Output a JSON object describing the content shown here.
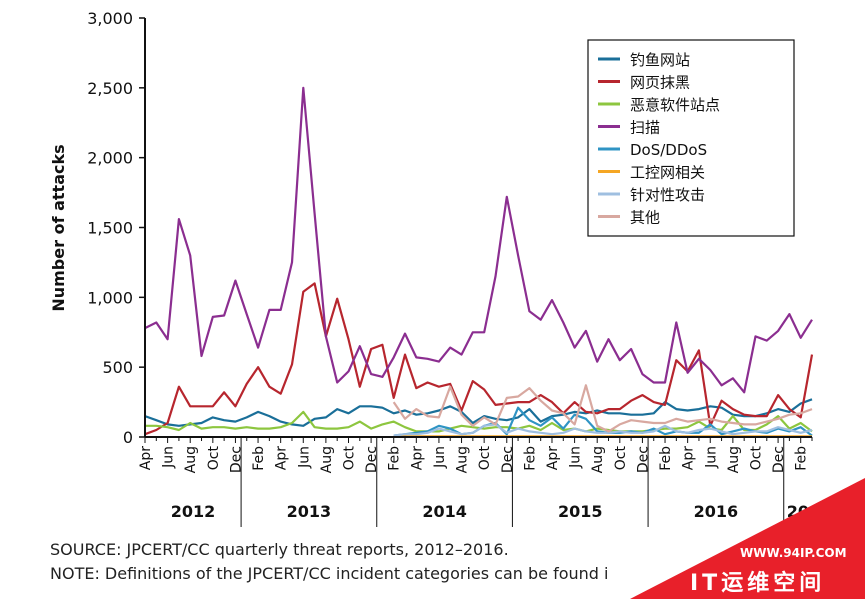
{
  "chart_data": {
    "type": "line",
    "title": "",
    "xlabel": "",
    "ylabel": "Number of attacks",
    "ylim": [
      0,
      3000
    ],
    "yticks": [
      0,
      500,
      1000,
      1500,
      2000,
      2500,
      3000
    ],
    "ytick_labels": [
      "0",
      "500",
      "1,000",
      "1,500",
      "2,000",
      "2,500",
      "3,000"
    ],
    "xtick_labels": [
      "Apr",
      "Jun",
      "Aug",
      "Oct",
      "Dec",
      "Feb",
      "Apr",
      "Jun",
      "Aug",
      "Oct",
      "Dec",
      "Feb",
      "Apr",
      "Jun",
      "Aug",
      "Oct",
      "Dec",
      "Feb",
      "Apr",
      "Jun",
      "Aug",
      "Oct",
      "Dec",
      "Feb",
      "Apr",
      "Jun",
      "Aug",
      "Oct",
      "Dec",
      "Feb"
    ],
    "year_labels": [
      "2012",
      "2013",
      "2014",
      "2015",
      "2016",
      "20"
    ],
    "grid": false,
    "legend_position": "top-right",
    "x_months": [
      "2012-04",
      "2012-05",
      "2012-06",
      "2012-07",
      "2012-08",
      "2012-09",
      "2012-10",
      "2012-11",
      "2012-12",
      "2013-01",
      "2013-02",
      "2013-03",
      "2013-04",
      "2013-05",
      "2013-06",
      "2013-07",
      "2013-08",
      "2013-09",
      "2013-10",
      "2013-11",
      "2013-12",
      "2014-01",
      "2014-02",
      "2014-03",
      "2014-04",
      "2014-05",
      "2014-06",
      "2014-07",
      "2014-08",
      "2014-09",
      "2014-10",
      "2014-11",
      "2014-12",
      "2015-01",
      "2015-02",
      "2015-03",
      "2015-04",
      "2015-05",
      "2015-06",
      "2015-07",
      "2015-08",
      "2015-09",
      "2015-10",
      "2015-11",
      "2015-12",
      "2016-01",
      "2016-02",
      "2016-03",
      "2016-04",
      "2016-05",
      "2016-06",
      "2016-07",
      "2016-08",
      "2016-09",
      "2016-10",
      "2016-11",
      "2016-12",
      "2017-01",
      "2017-02",
      "2017-03"
    ],
    "series": [
      {
        "name": "钓鱼网站",
        "color": "#1a6f99",
        "values": [
          150,
          120,
          90,
          80,
          90,
          100,
          140,
          120,
          110,
          140,
          180,
          150,
          110,
          90,
          80,
          130,
          140,
          200,
          170,
          220,
          220,
          210,
          170,
          190,
          160,
          170,
          190,
          220,
          180,
          100,
          150,
          130,
          120,
          140,
          200,
          110,
          150,
          160,
          180,
          170,
          190,
          170,
          170,
          160,
          160,
          170,
          250,
          200,
          190,
          200,
          220,
          210,
          160,
          150,
          150,
          170,
          200,
          180,
          240,
          270
        ]
      },
      {
        "name": "网页抹黑",
        "color": "#b7262e",
        "values": [
          20,
          50,
          100,
          360,
          220,
          220,
          220,
          320,
          220,
          380,
          500,
          360,
          310,
          520,
          1040,
          1100,
          720,
          990,
          700,
          360,
          630,
          660,
          280,
          590,
          350,
          390,
          360,
          380,
          190,
          400,
          340,
          230,
          240,
          250,
          250,
          300,
          250,
          170,
          250,
          180,
          170,
          200,
          200,
          260,
          300,
          250,
          230,
          550,
          470,
          620,
          80,
          260,
          200,
          160,
          150,
          150,
          300,
          200,
          140,
          590
        ]
      },
      {
        "name": "恶意软件站点",
        "color": "#8dc63f",
        "values": [
          80,
          80,
          70,
          50,
          100,
          60,
          70,
          70,
          60,
          70,
          60,
          60,
          70,
          100,
          180,
          70,
          60,
          60,
          70,
          110,
          60,
          90,
          110,
          70,
          40,
          40,
          40,
          60,
          80,
          70,
          60,
          70,
          70,
          60,
          80,
          50,
          100,
          50,
          60,
          40,
          60,
          50,
          40,
          40,
          40,
          50,
          60,
          60,
          70,
          110,
          60,
          50,
          150,
          50,
          50,
          90,
          150,
          60,
          100,
          40
        ]
      },
      {
        "name": "扫描",
        "color": "#8b2e90",
        "values": [
          780,
          820,
          700,
          1560,
          1300,
          580,
          860,
          870,
          1120,
          880,
          640,
          910,
          910,
          1250,
          2500,
          1600,
          720,
          390,
          470,
          650,
          450,
          430,
          570,
          740,
          570,
          560,
          540,
          640,
          590,
          750,
          750,
          1150,
          1720,
          1300,
          900,
          840,
          980,
          820,
          640,
          760,
          540,
          700,
          550,
          630,
          450,
          390,
          390,
          820,
          460,
          560,
          480,
          370,
          420,
          320,
          720,
          690,
          760,
          880,
          710,
          840
        ]
      },
      {
        "name": "DoS/DDoS",
        "color": "#2f94c4",
        "values": [
          null,
          null,
          null,
          null,
          null,
          null,
          null,
          null,
          null,
          null,
          null,
          null,
          null,
          null,
          null,
          null,
          null,
          null,
          null,
          null,
          null,
          null,
          10,
          20,
          30,
          40,
          80,
          60,
          20,
          30,
          80,
          100,
          20,
          210,
          120,
          80,
          140,
          60,
          160,
          130,
          40,
          30,
          30,
          40,
          30,
          60,
          20,
          40,
          30,
          30,
          90,
          20,
          40,
          60,
          40,
          30,
          60,
          40,
          70,
          10
        ]
      },
      {
        "name": "工控网相关",
        "color": "#f5a623",
        "values": [
          null,
          null,
          null,
          null,
          null,
          null,
          null,
          null,
          null,
          null,
          null,
          null,
          null,
          null,
          null,
          null,
          null,
          null,
          null,
          null,
          null,
          null,
          5,
          5,
          5,
          5,
          5,
          5,
          5,
          5,
          5,
          5,
          5,
          5,
          5,
          5,
          5,
          5,
          5,
          5,
          5,
          5,
          5,
          5,
          5,
          5,
          5,
          5,
          5,
          5,
          5,
          5,
          5,
          5,
          5,
          5,
          5,
          5,
          5,
          5
        ]
      },
      {
        "name": "针对性攻击",
        "color": "#9fbfe0",
        "values": [
          null,
          null,
          null,
          null,
          null,
          null,
          null,
          null,
          null,
          null,
          null,
          null,
          null,
          null,
          null,
          null,
          null,
          null,
          null,
          null,
          null,
          null,
          10,
          20,
          20,
          30,
          60,
          40,
          20,
          30,
          80,
          90,
          30,
          60,
          40,
          30,
          20,
          30,
          60,
          40,
          30,
          30,
          40,
          30,
          30,
          40,
          80,
          40,
          30,
          50,
          60,
          40,
          20,
          30,
          40,
          40,
          70,
          50,
          30,
          50
        ]
      },
      {
        "name": "其他",
        "color": "#d8a8a0",
        "values": [
          null,
          null,
          null,
          null,
          null,
          null,
          null,
          null,
          null,
          null,
          null,
          null,
          null,
          null,
          null,
          null,
          null,
          null,
          null,
          null,
          null,
          null,
          250,
          130,
          200,
          150,
          140,
          360,
          160,
          80,
          140,
          90,
          280,
          290,
          350,
          260,
          190,
          170,
          90,
          370,
          80,
          40,
          90,
          120,
          110,
          100,
          100,
          130,
          110,
          120,
          130,
          110,
          100,
          90,
          90,
          110,
          130,
          160,
          170,
          200
        ]
      }
    ]
  },
  "notes": {
    "source": "SOURCE: JPCERT/CC quarterly threat reports, 2012–2016.",
    "note": "NOTE: Definitions of the JPCERT/CC incident categories can be found i"
  },
  "watermark": {
    "url": "WWW.94IP.COM",
    "name": "IT运维空间",
    "color": "#e8202a"
  }
}
